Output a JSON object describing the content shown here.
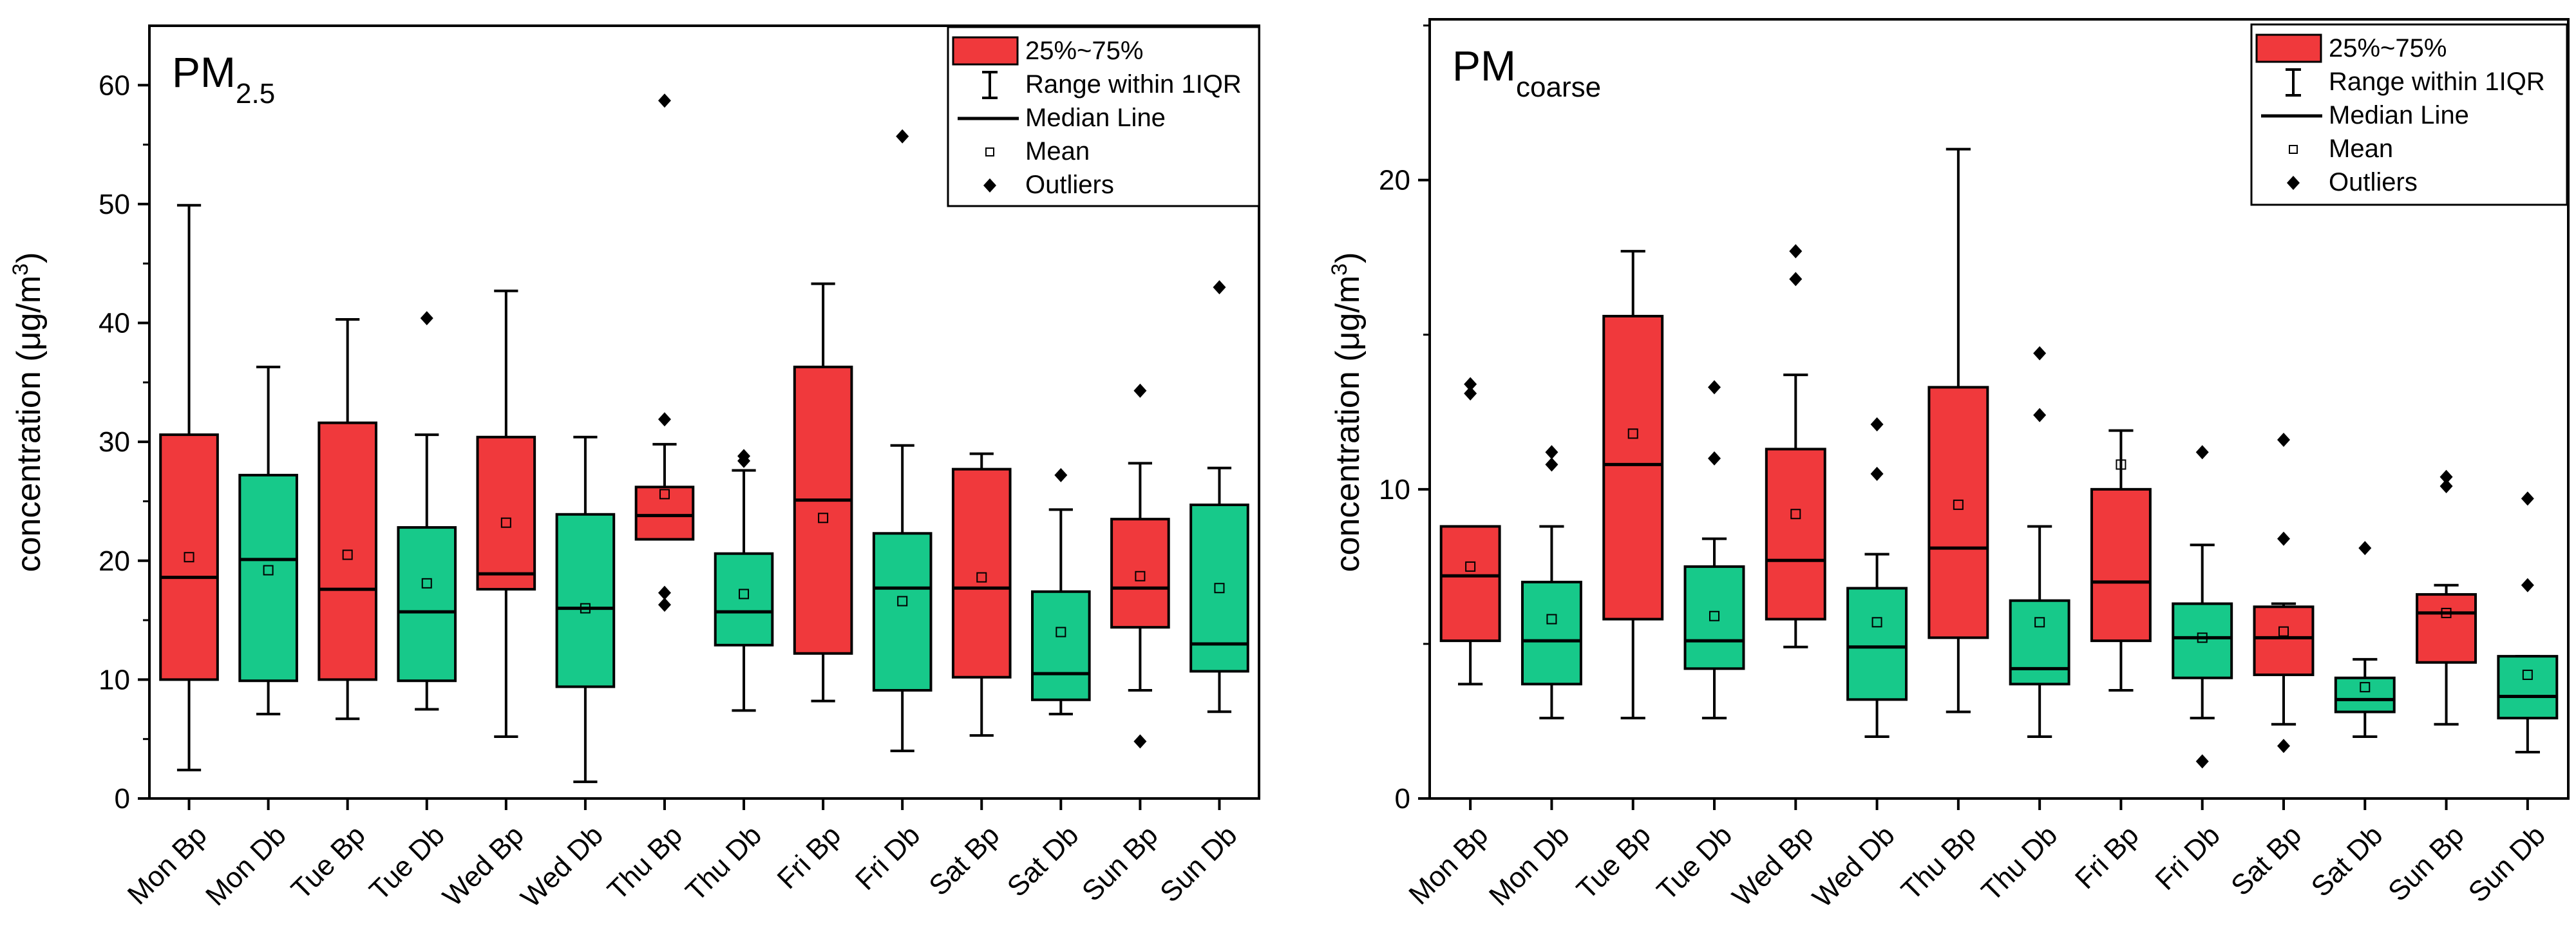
{
  "colors": {
    "bp": "#f0393c",
    "db": "#17c98a",
    "axis": "#000000"
  },
  "chart_data": [
    {
      "type": "box",
      "title_main": "PM",
      "title_sub": "2.5",
      "ylabel_main": "concentration (μg/m",
      "ylabel_sup": "3",
      "ylabel_close": ")",
      "ylim": [
        0,
        65
      ],
      "yticks": [
        0,
        10,
        20,
        30,
        40,
        50,
        60
      ],
      "categories": [
        "Mon Bp",
        "Mon Db",
        "Tue Bp",
        "Tue Db",
        "Wed Bp",
        "Wed Db",
        "Thu Bp",
        "Thu Db",
        "Fri Bp",
        "Fri Db",
        "Sat Bp",
        "Sat Db",
        "Sun Bp",
        "Sun Db"
      ],
      "boxes": [
        {
          "min": 2.4,
          "q1": 10,
          "median": 18.6,
          "q3": 30.6,
          "max": 49.9,
          "mean": 20.3,
          "outliers": []
        },
        {
          "min": 7.1,
          "q1": 9.9,
          "median": 20.1,
          "q3": 27.2,
          "max": 36.3,
          "mean": 19.2,
          "outliers": []
        },
        {
          "min": 6.7,
          "q1": 10,
          "median": 17.6,
          "q3": 31.6,
          "max": 40.3,
          "mean": 20.5,
          "outliers": []
        },
        {
          "min": 7.5,
          "q1": 9.9,
          "median": 15.7,
          "q3": 22.8,
          "max": 30.6,
          "mean": 18.1,
          "outliers": [
            40.4
          ]
        },
        {
          "min": 5.2,
          "q1": 17.6,
          "median": 18.9,
          "q3": 30.4,
          "max": 42.7,
          "mean": 23.2,
          "outliers": []
        },
        {
          "min": 1.4,
          "q1": 9.4,
          "median": 16,
          "q3": 23.9,
          "max": 30.4,
          "mean": 16,
          "outliers": []
        },
        {
          "min": 21.8,
          "q1": 21.8,
          "median": 23.8,
          "q3": 26.2,
          "max": 29.8,
          "mean": 25.6,
          "outliers": [
            58.7,
            31.9,
            17.3,
            16.3
          ]
        },
        {
          "min": 7.4,
          "q1": 12.9,
          "median": 15.7,
          "q3": 20.6,
          "max": 27.6,
          "mean": 17.2,
          "outliers": [
            28.8,
            28.4
          ]
        },
        {
          "min": 8.2,
          "q1": 12.2,
          "median": 25.1,
          "q3": 36.3,
          "max": 43.3,
          "mean": 23.6,
          "outliers": []
        },
        {
          "min": 4,
          "q1": 9.1,
          "median": 17.7,
          "q3": 22.3,
          "max": 29.7,
          "mean": 16.6,
          "outliers": [
            55.7
          ]
        },
        {
          "min": 5.3,
          "q1": 10.2,
          "median": 17.7,
          "q3": 27.7,
          "max": 29,
          "mean": 18.6,
          "outliers": []
        },
        {
          "min": 7.1,
          "q1": 8.3,
          "median": 10.5,
          "q3": 17.4,
          "max": 24.3,
          "mean": 14,
          "outliers": [
            27.2
          ]
        },
        {
          "min": 9.1,
          "q1": 14.4,
          "median": 17.7,
          "q3": 23.5,
          "max": 28.2,
          "mean": 18.7,
          "outliers": [
            34.3,
            4.8
          ]
        },
        {
          "min": 7.3,
          "q1": 10.7,
          "median": 13,
          "q3": 24.7,
          "max": 27.8,
          "mean": 17.7,
          "outliers": [
            43
          ]
        }
      ],
      "legend": {
        "box": "25%~75%",
        "whisker": "Range within 1IQR",
        "median": "Median Line",
        "mean": "Mean",
        "outliers": "Outliers"
      }
    },
    {
      "type": "box",
      "title_main": "PM",
      "title_sub": "coarse",
      "ylabel_main": "concentration (μg/m",
      "ylabel_sup": "3",
      "ylabel_close": ")",
      "ylim": [
        0,
        25.2
      ],
      "yticks": [
        0,
        10,
        20
      ],
      "categories": [
        "Mon Bp",
        "Mon Db",
        "Tue Bp",
        "Tue Db",
        "Wed Bp",
        "Wed Db",
        "Thu Bp",
        "Thu Db",
        "Fri Bp",
        "Fri Db",
        "Sat Bp",
        "Sat Db",
        "Sun Bp",
        "Sun Db"
      ],
      "boxes": [
        {
          "min": 3.7,
          "q1": 5.1,
          "median": 7.2,
          "q3": 8.8,
          "max": 8.8,
          "mean": 7.5,
          "outliers": [
            13.4,
            13.1
          ]
        },
        {
          "min": 2.6,
          "q1": 3.7,
          "median": 5.1,
          "q3": 7,
          "max": 8.8,
          "mean": 5.8,
          "outliers": [
            11.2,
            10.8
          ]
        },
        {
          "min": 2.6,
          "q1": 5.8,
          "median": 10.8,
          "q3": 15.6,
          "max": 17.7,
          "mean": 11.8,
          "outliers": []
        },
        {
          "min": 2.6,
          "q1": 4.2,
          "median": 5.1,
          "q3": 7.5,
          "max": 8.4,
          "mean": 5.9,
          "outliers": [
            13.3,
            11
          ]
        },
        {
          "min": 4.9,
          "q1": 5.8,
          "median": 7.7,
          "q3": 11.3,
          "max": 13.7,
          "mean": 9.2,
          "outliers": [
            17.7,
            16.8
          ]
        },
        {
          "min": 2,
          "q1": 3.2,
          "median": 4.9,
          "q3": 6.8,
          "max": 7.9,
          "mean": 5.7,
          "outliers": [
            12.1,
            10.5
          ]
        },
        {
          "min": 2.8,
          "q1": 5.2,
          "median": 8.1,
          "q3": 13.3,
          "max": 21,
          "mean": 9.5,
          "outliers": []
        },
        {
          "min": 2,
          "q1": 3.7,
          "median": 4.2,
          "q3": 6.4,
          "max": 8.8,
          "mean": 5.7,
          "outliers": [
            14.4,
            12.4
          ]
        },
        {
          "min": 3.5,
          "q1": 5.1,
          "median": 7,
          "q3": 10,
          "max": 11.9,
          "mean": 10.8,
          "outliers": []
        },
        {
          "min": 2.6,
          "q1": 3.9,
          "median": 5.2,
          "q3": 6.3,
          "max": 8.2,
          "mean": 5.2,
          "outliers": [
            11.2,
            1.2
          ]
        },
        {
          "min": 2.4,
          "q1": 4,
          "median": 5.2,
          "q3": 6.2,
          "max": 6.3,
          "mean": 5.4,
          "outliers": [
            11.6,
            8.4,
            1.7
          ]
        },
        {
          "min": 2,
          "q1": 2.8,
          "median": 3.2,
          "q3": 3.9,
          "max": 4.5,
          "mean": 3.6,
          "outliers": [
            8.1
          ]
        },
        {
          "min": 2.4,
          "q1": 4.4,
          "median": 6,
          "q3": 6.6,
          "max": 6.9,
          "mean": 6,
          "outliers": [
            10.4,
            10.1
          ]
        },
        {
          "min": 1.5,
          "q1": 2.6,
          "median": 3.3,
          "q3": 4.6,
          "max": 4.6,
          "mean": 4,
          "outliers": [
            9.7,
            6.9
          ]
        }
      ],
      "legend": {
        "box": "25%~75%",
        "whisker": "Range within 1IQR",
        "median": "Median Line",
        "mean": "Mean",
        "outliers": "Outliers"
      }
    }
  ]
}
